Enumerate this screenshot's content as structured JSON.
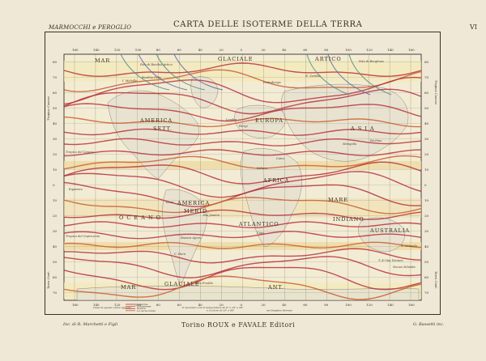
{
  "header": {
    "left": "MARMOCCHI e PEROGLIO",
    "title": "CARTA DELLE ISOTERME DELLA TERRA",
    "plate": "VI"
  },
  "footer": {
    "left": "Inc. di R. Marchetti e Figli",
    "publisher": "Torino ROUX e FAVALE Editori",
    "right": "G. Bassetti inc."
  },
  "map": {
    "colors": {
      "isotherm_red": "#b8323c",
      "isotherm_orange": "#c9602e",
      "isotherm_teal": "#4d8e8a",
      "isotherm_blue": "#5a6fa8",
      "sea_tint": "#f1ead0",
      "tropic_band": "#eddba0",
      "land": "#e7e2d0",
      "grid": "#6e6557"
    },
    "lat_labels": [
      "80",
      "70",
      "60",
      "50",
      "40",
      "30",
      "20",
      "10",
      "0",
      "10",
      "20",
      "30",
      "40",
      "50",
      "60",
      "70"
    ],
    "lon_labels": [
      "160",
      "140",
      "120",
      "100",
      "80",
      "60",
      "40",
      "20",
      "0",
      "20",
      "40",
      "60",
      "80",
      "100",
      "120",
      "140",
      "160"
    ],
    "region_labels": [
      {
        "text": "MAR",
        "key": "mar-artico-left"
      },
      {
        "text": "GLACIALE",
        "key": "glaciale-n"
      },
      {
        "text": "ARTICO",
        "key": "artico"
      },
      {
        "text": "AMERICA",
        "key": "america-n"
      },
      {
        "text": "SETT.",
        "key": "sett"
      },
      {
        "text": "EUROPA",
        "key": "europa"
      },
      {
        "text": "A S I A",
        "key": "asia"
      },
      {
        "text": "AFRICA",
        "key": "africa"
      },
      {
        "text": "AMERICA",
        "key": "america-s"
      },
      {
        "text": "MERID.",
        "key": "merid"
      },
      {
        "text": "O C E A N O",
        "key": "oceano"
      },
      {
        "text": "ATLANTICO",
        "key": "atlantico"
      },
      {
        "text": "MARE",
        "key": "mare-indiano"
      },
      {
        "text": "INDIANO",
        "key": "indiano"
      },
      {
        "text": "AUSTRALIA",
        "key": "australia"
      },
      {
        "text": "MAR",
        "key": "mar-antartico"
      },
      {
        "text": "GLACIALE",
        "key": "glaciale-s"
      },
      {
        "text": "ANT.",
        "key": "ant"
      }
    ],
    "place_labels": [
      {
        "text": "Polo di Boothia Artico"
      },
      {
        "text": "Boothia Felix"
      },
      {
        "text": "I. Melville"
      },
      {
        "text": "Pietroborgo"
      },
      {
        "text": "N. Zembla"
      },
      {
        "text": "Polo di Berghaus"
      },
      {
        "text": "Tropico del Cancro"
      },
      {
        "text": "Equatore"
      },
      {
        "text": "Tropico del Capricorno"
      },
      {
        "text": "Mongolia"
      },
      {
        "text": "Pechino"
      },
      {
        "text": "Parigi"
      },
      {
        "text": "Londra"
      },
      {
        "text": "Cairo"
      },
      {
        "text": "Sahara"
      },
      {
        "text": "Capo"
      },
      {
        "text": "Lima"
      },
      {
        "text": "Rio Janeiro"
      },
      {
        "text": "Buenos Ayres"
      },
      {
        "text": "C. Horn"
      },
      {
        "text": "T. di Van Diemen"
      },
      {
        "text": "N. Zelanda"
      },
      {
        "text": "Nuova Zelanda"
      },
      {
        "text": "Polo Freddo"
      }
    ],
    "legend_lines": [
      "Linee di eguale calore agguale",
      "Isoterme",
      "Isochimene",
      "Isotere",
      "La curva tonda"
    ],
    "legend_notes": [
      "Il raportato cola la temperatura dà 0° e 10° e 20°",
      "e il colore di 10° e 40°",
      "nel Emisfero Boreale"
    ],
    "side_left_top": "Tropico Cancro",
    "side_left_bottom": "Terra Cont.",
    "side_right_top": "Tropico Cancro",
    "side_right_bottom": "Terra Cont.",
    "isotherm_count": 22
  }
}
